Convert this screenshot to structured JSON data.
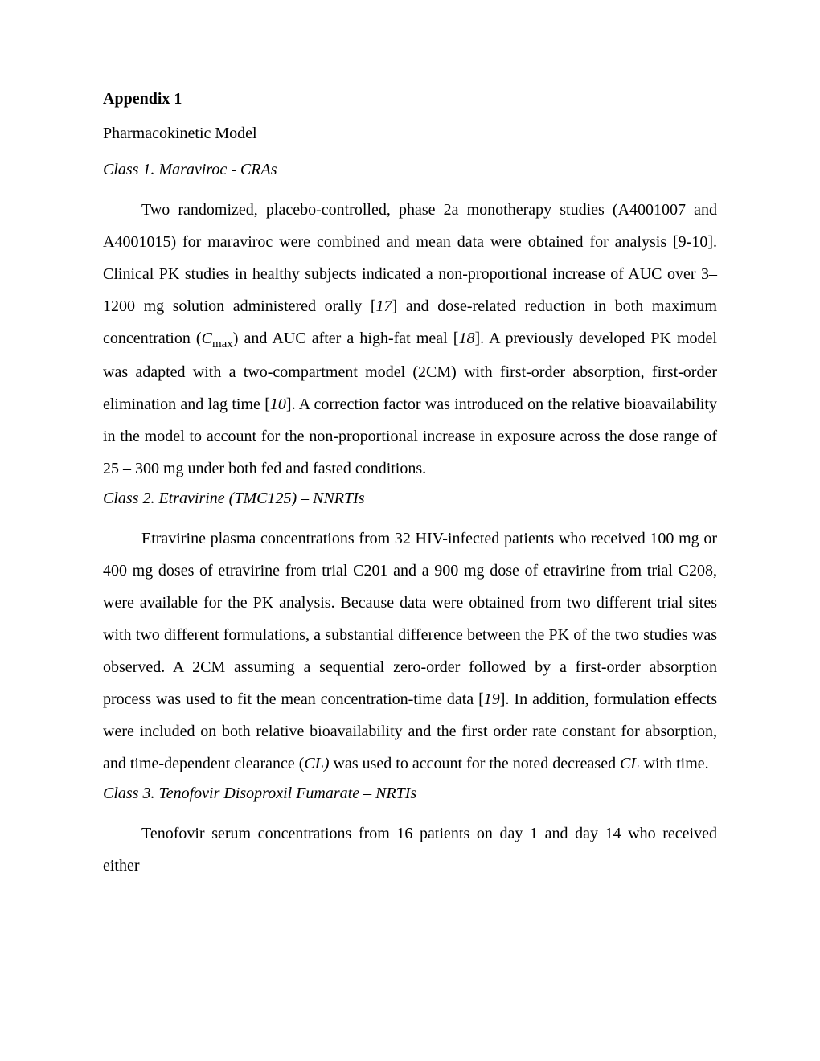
{
  "colors": {
    "text": "#000000",
    "background": "#ffffff"
  },
  "typography": {
    "font_family": "Times New Roman",
    "base_fontsize_pt": 12,
    "line_spacing": 2.0
  },
  "heading": "Appendix 1",
  "subtitle": "Pharmacokinetic Model",
  "class1": {
    "heading": "Class 1.  Maraviroc - CRAs",
    "p1a": "Two randomized, placebo-controlled, phase 2a monotherapy studies (A4001007 and A4001015) for maraviroc were combined and mean data were obtained for analysis [9-10]. Clinical PK studies in healthy subjects indicated a non-proportional increase of AUC over 3–1200 mg solution administered orally [",
    "ref1": "17",
    "p1b": "] and dose-related reduction in both maximum concentration (",
    "cmax_C": "C",
    "cmax_sub": "max",
    "p1c": ") and AUC after a high-fat meal [",
    "ref2": "18",
    "p1d": "]. A previously developed PK model was adapted with a two-compartment model (2CM) with first-order absorption, first-order elimination and lag time [",
    "ref3": "10",
    "p1e": "]. A correction factor was introduced on the relative bioavailability in the model to account for the non-proportional increase in exposure across the dose range of 25 – 300 mg under both fed and fasted conditions."
  },
  "class2": {
    "heading": "Class 2. Etravirine (TMC125) – NNRTIs",
    "p1a": "Etravirine plasma concentrations from 32 HIV-infected patients who received 100 mg or 400 mg doses of etravirine from trial C201 and a 900 mg dose of etravirine from trial C208, were available for the PK analysis. Because data were obtained from two different trial sites with two different formulations, a substantial difference between the PK of the two studies was observed. A 2CM assuming a sequential zero-order followed by a first-order absorption process was used to fit the mean concentration-time data [",
    "ref1": "19",
    "p1b": "]. In addition, formulation effects were included on both relative bioavailability and the first order rate constant for absorption, and time-dependent clearance (",
    "cl": "CL)",
    "p1c": " was used to account for the noted decreased ",
    "cl2": "CL",
    "p1d": " with time."
  },
  "class3": {
    "heading": "Class 3. Tenofovir Disoproxil Fumarate – NRTIs",
    "p1": "Tenofovir serum concentrations from 16 patients on day 1 and day 14 who received either"
  }
}
